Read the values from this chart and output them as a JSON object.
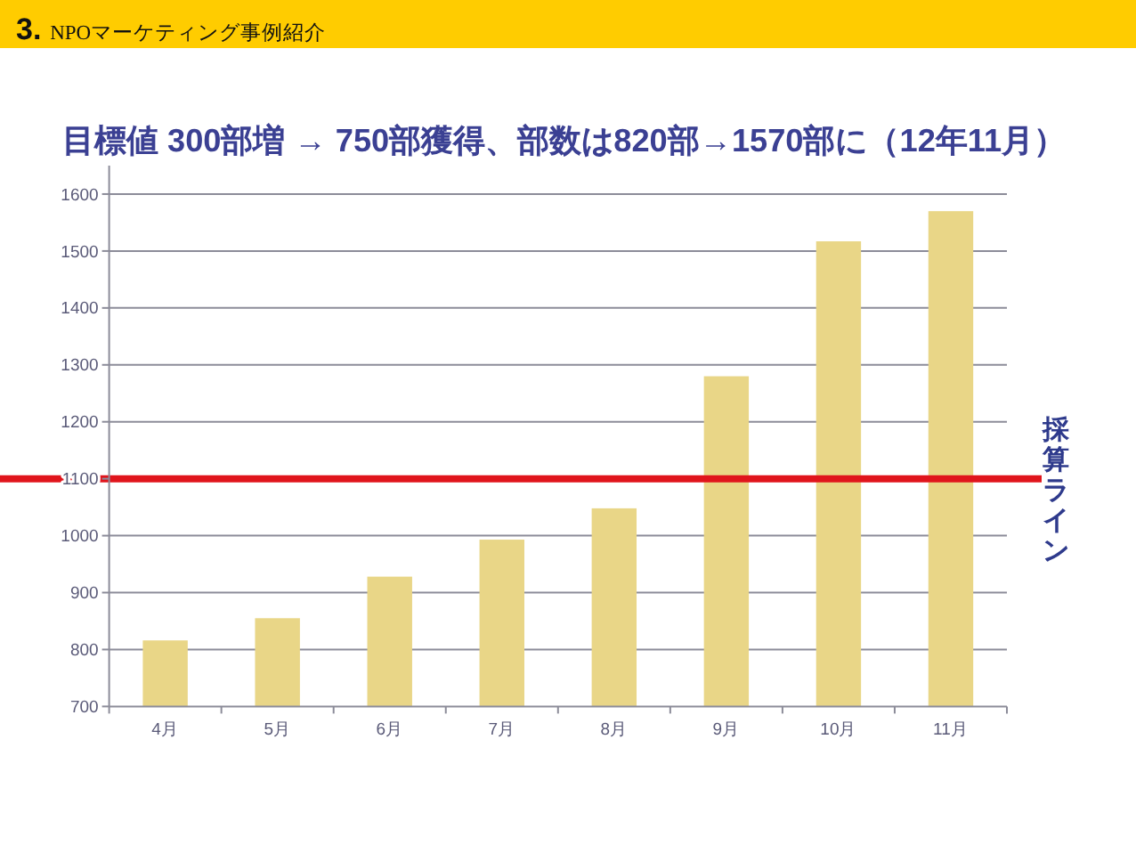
{
  "chart_data": {
    "type": "bar",
    "title": "目標値 300部増 → 750部獲得、部数は820部→1570部に（12年11月）",
    "annotations": [
      "3. NPOマーケティング事例紹介"
    ],
    "categories": [
      "4月",
      "5月",
      "6月",
      "7月",
      "8月",
      "9月",
      "10月",
      "11月"
    ],
    "values": [
      816,
      855,
      928,
      993,
      1048,
      1280,
      1517,
      1570
    ],
    "color": "#e9d687",
    "ylim": [
      700,
      1650
    ],
    "yticks": [
      700,
      800,
      900,
      1000,
      1100,
      1200,
      1300,
      1400,
      1500,
      1600
    ],
    "grid": "y",
    "ref_lines": [
      {
        "axis": "y",
        "value": 1100,
        "label": "採算ライン",
        "color": "#e0151c"
      }
    ]
  }
}
